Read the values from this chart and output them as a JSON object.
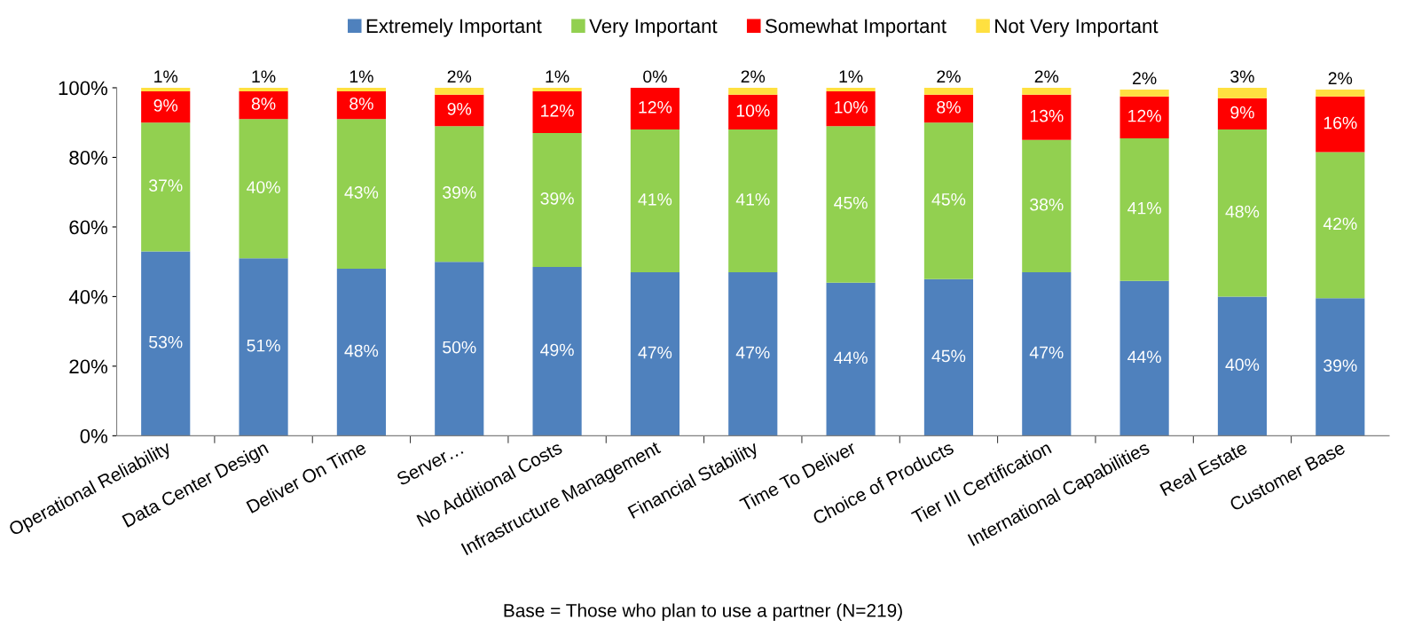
{
  "chart_data": {
    "type": "bar",
    "stacked": true,
    "legend": "top",
    "grid": false,
    "categories": [
      "Operational Reliability",
      "Data Center Design",
      "Deliver On Time",
      "Server…",
      "No Additional Costs",
      "Infrastructure Management",
      "Financial Stability",
      "Time To Deliver",
      "Choice of Products",
      "Tier III Certification",
      "International Capabilities",
      "Real Estate",
      "Customer Base"
    ],
    "series": [
      {
        "name": "Extremely Important",
        "color": "#4f81bd",
        "values": [
          53,
          51,
          48,
          50,
          48.5,
          47,
          47,
          44,
          45,
          47,
          44.5,
          40,
          39.5
        ],
        "value_labels": [
          "53%",
          "51%",
          "48%",
          "50%",
          "49%",
          "47%",
          "47%",
          "44%",
          "45%",
          "47%",
          "44%",
          "40%",
          "39%"
        ]
      },
      {
        "name": "Very Important",
        "color": "#92d050",
        "values": [
          37,
          40,
          43,
          39,
          38.5,
          41,
          41,
          45,
          45,
          38,
          41,
          48,
          42
        ],
        "value_labels": [
          "37%",
          "40%",
          "43%",
          "39%",
          "39%",
          "41%",
          "41%",
          "45%",
          "45%",
          "38%",
          "41%",
          "48%",
          "42%"
        ]
      },
      {
        "name": "Somewhat Important",
        "color": "#ff0000",
        "values": [
          9,
          8,
          8,
          9,
          12,
          12,
          10,
          10,
          8,
          13,
          12,
          9,
          16
        ],
        "value_labels": [
          "9%",
          "8%",
          "8%",
          "9%",
          "12%",
          "12%",
          "10%",
          "10%",
          "8%",
          "13%",
          "12%",
          "9%",
          "16%"
        ]
      },
      {
        "name": "Not Very Important",
        "color": "#ffe040",
        "values": [
          1,
          1,
          1,
          2,
          1,
          0,
          2,
          1,
          2,
          2,
          2,
          3,
          2
        ],
        "value_labels": [
          "1%",
          "1%",
          "1%",
          "2%",
          "1%",
          "0%",
          "2%",
          "1%",
          "2%",
          "2%",
          "2%",
          "3%",
          "2%"
        ]
      }
    ],
    "ylim": [
      0,
      100
    ],
    "yticks": [
      {
        "value": 0,
        "label": "0%"
      },
      {
        "value": 20,
        "label": "20%"
      },
      {
        "value": 40,
        "label": "40%"
      },
      {
        "value": 60,
        "label": "60%"
      },
      {
        "value": 80,
        "label": "80%"
      },
      {
        "value": 100,
        "label": "100%"
      }
    ],
    "annotations": [
      "Base = Those who plan to use a partner (N=219)"
    ]
  }
}
